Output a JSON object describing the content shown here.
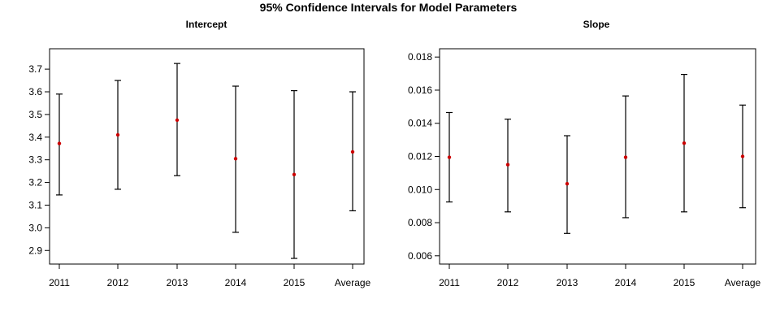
{
  "title": "95% Confidence Intervals for Model Parameters",
  "chart_data": [
    {
      "type": "errorbar",
      "title": "Intercept",
      "categories": [
        "2011",
        "2012",
        "2013",
        "2014",
        "2015",
        "Average"
      ],
      "estimates": [
        3.372,
        3.41,
        3.475,
        3.305,
        3.235,
        3.335
      ],
      "lower": [
        3.145,
        3.17,
        3.23,
        2.98,
        2.865,
        3.075
      ],
      "upper": [
        3.59,
        3.65,
        3.725,
        3.625,
        3.605,
        3.6
      ],
      "ylim": [
        2.84,
        3.79
      ],
      "yticks": [
        "2.9",
        "3.0",
        "3.1",
        "3.2",
        "3.3",
        "3.4",
        "3.5",
        "3.6",
        "3.7"
      ],
      "grid": false,
      "colors": {
        "point": "#cc0000",
        "bar": "#000000"
      }
    },
    {
      "type": "errorbar",
      "title": "Slope",
      "categories": [
        "2011",
        "2012",
        "2013",
        "2014",
        "2015",
        "Average"
      ],
      "estimates": [
        0.01195,
        0.0115,
        0.01035,
        0.01195,
        0.0128,
        0.012
      ],
      "lower": [
        0.00925,
        0.00865,
        0.00735,
        0.0083,
        0.00865,
        0.0089
      ],
      "upper": [
        0.01465,
        0.01425,
        0.01325,
        0.01565,
        0.01695,
        0.0151
      ],
      "ylim": [
        0.0055,
        0.0185
      ],
      "yticks": [
        "0.006",
        "0.008",
        "0.010",
        "0.012",
        "0.014",
        "0.016",
        "0.018"
      ],
      "grid": false,
      "colors": {
        "point": "#cc0000",
        "bar": "#000000"
      }
    }
  ]
}
